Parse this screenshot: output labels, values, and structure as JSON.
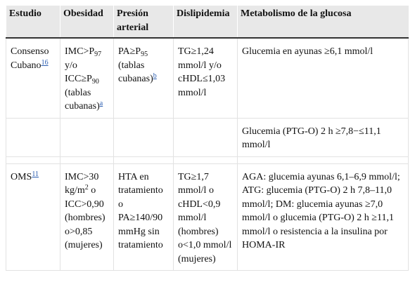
{
  "table": {
    "header": [
      "Estudio",
      "Obesidad",
      "Presión arterial",
      "Dislipidemia",
      "Metabolismo de la glucosa"
    ],
    "groups": [
      [
        [
          [
            {
              "t": "Consenso Cubano"
            },
            {
              "link": "16"
            }
          ],
          [
            {
              "t": "IMC>P"
            },
            {
              "sub": "97"
            },
            {
              "t": " y/o ICC≥P"
            },
            {
              "sub": "90"
            },
            {
              "t": " (tablas cubanas)"
            },
            {
              "link": "a"
            }
          ],
          [
            {
              "t": "PA≥P"
            },
            {
              "sub": "95"
            },
            {
              "t": " (tablas cubanas)"
            },
            {
              "link": "b"
            }
          ],
          [
            {
              "t": "TG≥1,24 mmol/l y/o cHDL≤1,03 mmol/l"
            }
          ],
          [
            {
              "t": "Glucemia en ayunas ≥6,1 mmol/l"
            }
          ]
        ],
        [
          null,
          null,
          null,
          null,
          [
            {
              "t": "Glucemia (PTG-O) 2 h ≥7,8−≤11,1 mmol/l"
            }
          ]
        ]
      ],
      [
        [
          [
            {
              "t": "OMS"
            },
            {
              "link": "11"
            }
          ],
          [
            {
              "t": "IMC>30 kg/m"
            },
            {
              "sup": "2"
            },
            {
              "t": " o ICC>0,90 (hombres) o>0,85 (mujeres)"
            }
          ],
          [
            {
              "t": "HTA en tratamiento o PA≥140/90 mmHg sin tratamiento"
            }
          ],
          [
            {
              "t": "TG≥1,7 mmol/l o cHDL<0,9 mmol/l (hombres) o<1,0 mmol/l (mujeres)"
            }
          ],
          [
            {
              "t": "AGA: glucemia ayunas 6,1–6,9 mmol/l; ATG: glucemia (PTG-O) 2 h 7,8–11,0 mmol/l; DM: glucemia ayunas ≥7,0 mmol/l o glucemia (PTG-O) 2 h ≥11,1 mmol/l o resistencia a la insulina por HOMA-IR"
            }
          ]
        ]
      ]
    ]
  }
}
